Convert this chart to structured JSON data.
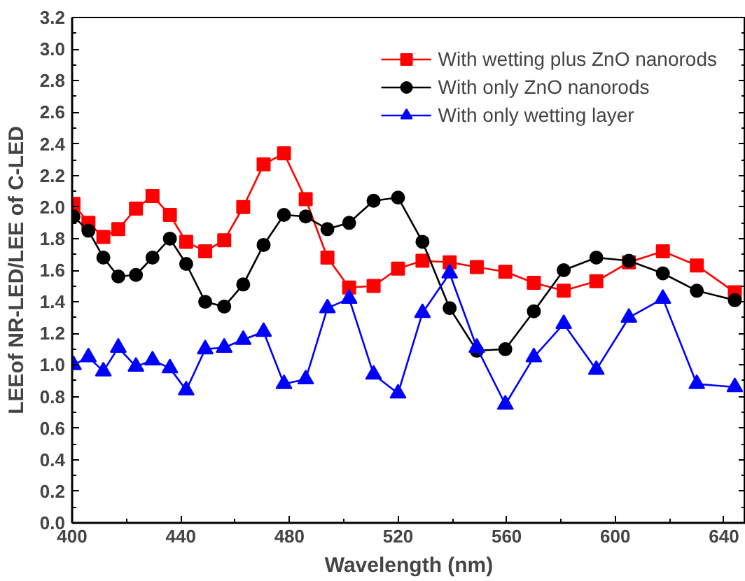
{
  "chart_data": {
    "type": "line",
    "xlabel": "Wavelength (nm)",
    "ylabel": "LEEof NR-LED/LEE of C-LED",
    "x": [
      400.5,
      406,
      411.5,
      417,
      423.5,
      429.6,
      436,
      442,
      449,
      456,
      463,
      470.5,
      478,
      486,
      494,
      502,
      511,
      520,
      529,
      539,
      549,
      559.5,
      570,
      581,
      593,
      605,
      617.5,
      630,
      644
    ],
    "series": [
      {
        "name": "With wetting plus ZnO nanorods",
        "color": "#ff0000",
        "marker": "square",
        "values": [
          2.02,
          1.9,
          1.81,
          1.86,
          1.99,
          2.07,
          1.95,
          1.78,
          1.72,
          1.79,
          2.0,
          2.27,
          2.34,
          2.05,
          1.68,
          1.49,
          1.5,
          1.61,
          1.66,
          1.65,
          1.62,
          1.59,
          1.52,
          1.47,
          1.53,
          1.65,
          1.72,
          1.63,
          1.46
        ]
      },
      {
        "name": "With only ZnO nanorods",
        "color": "#000000",
        "marker": "circle",
        "values": [
          1.94,
          1.85,
          1.68,
          1.56,
          1.57,
          1.68,
          1.8,
          1.64,
          1.4,
          1.37,
          1.51,
          1.76,
          1.95,
          1.94,
          1.86,
          1.9,
          2.04,
          2.06,
          1.78,
          1.36,
          1.09,
          1.1,
          1.34,
          1.6,
          1.68,
          1.66,
          1.58,
          1.47,
          1.41
        ]
      },
      {
        "name": "With only wetting layer",
        "color": "#0000ff",
        "marker": "triangle",
        "values": [
          1.0,
          1.05,
          0.96,
          1.11,
          0.99,
          1.03,
          0.98,
          0.84,
          1.1,
          1.11,
          1.16,
          1.21,
          0.88,
          0.91,
          1.36,
          1.42,
          0.94,
          0.82,
          1.33,
          1.58,
          1.11,
          0.75,
          1.05,
          1.26,
          0.97,
          1.3,
          1.42,
          0.88,
          0.86
        ]
      }
    ],
    "xlim": [
      400,
      648
    ],
    "xticks": [
      400,
      440,
      480,
      520,
      560,
      600,
      640
    ],
    "ylim": [
      0,
      3.2
    ],
    "yticks": [
      {
        "value": 0,
        "label": "0.0"
      },
      0.2,
      0.4,
      0.6,
      0.8,
      {
        "value": 1,
        "label": "1.0"
      },
      1.2,
      1.4,
      1.6,
      1.8,
      {
        "value": 2,
        "label": "2.0"
      },
      2.2,
      2.4,
      2.6,
      2.8,
      {
        "value": 3,
        "label": "3.0"
      },
      3.2
    ],
    "legend": "top right",
    "grid": false
  }
}
